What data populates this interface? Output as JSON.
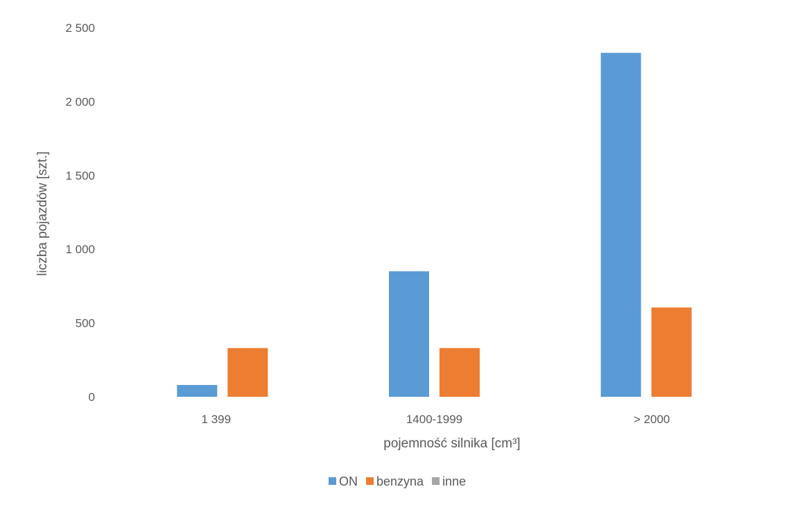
{
  "chart_data": {
    "type": "bar",
    "categories": [
      "1 399",
      "1400-1999",
      "> 2000"
    ],
    "series": [
      {
        "name": "ON",
        "values": [
          80,
          850,
          2330
        ],
        "color": "#5B9BD5"
      },
      {
        "name": "benzyna",
        "values": [
          330,
          330,
          605
        ],
        "color": "#ED7D31"
      },
      {
        "name": "inne",
        "values": [
          0,
          0,
          0
        ],
        "color": "#A5A5A5"
      }
    ],
    "xlabel": "pojemność silnika [cm³]",
    "ylabel": "liczba pojazdów [szt.]",
    "ylim": [
      0,
      2500
    ],
    "yticks": [
      {
        "value": 0,
        "label": "0"
      },
      {
        "value": 500,
        "label": "500"
      },
      {
        "value": 1000,
        "label": "1 000"
      },
      {
        "value": 1500,
        "label": "1 500"
      },
      {
        "value": 2000,
        "label": "2 000"
      },
      {
        "value": 2500,
        "label": "2 500"
      }
    ],
    "grid": false,
    "legend": "bottom"
  }
}
